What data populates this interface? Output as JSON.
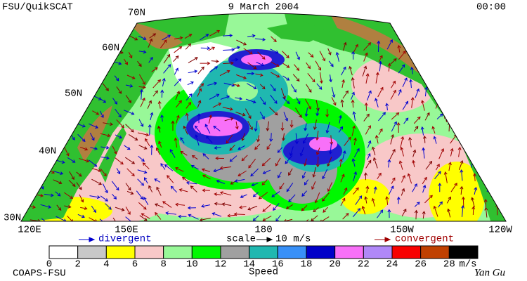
{
  "header": {
    "left": "FSU/QuikSCAT",
    "center": "9 March 2004",
    "right": "00:00"
  },
  "map": {
    "lat_labels": [
      "70N",
      "60N",
      "50N",
      "40N",
      "30N"
    ],
    "lon_labels": [
      "120E",
      "150E",
      "180",
      "150W",
      "120W"
    ]
  },
  "legend": {
    "divergent": "divergent",
    "scale": "scale",
    "scale_value": "10 m/s",
    "convergent": "convergent"
  },
  "colorbar": {
    "ticks": [
      0,
      2,
      4,
      6,
      8,
      10,
      12,
      14,
      16,
      18,
      20,
      22,
      24,
      26,
      28
    ],
    "unit": "m/s",
    "title": "Speed"
  },
  "footer": {
    "left": "COAPS-FSU",
    "right": "Yan Gu"
  }
}
